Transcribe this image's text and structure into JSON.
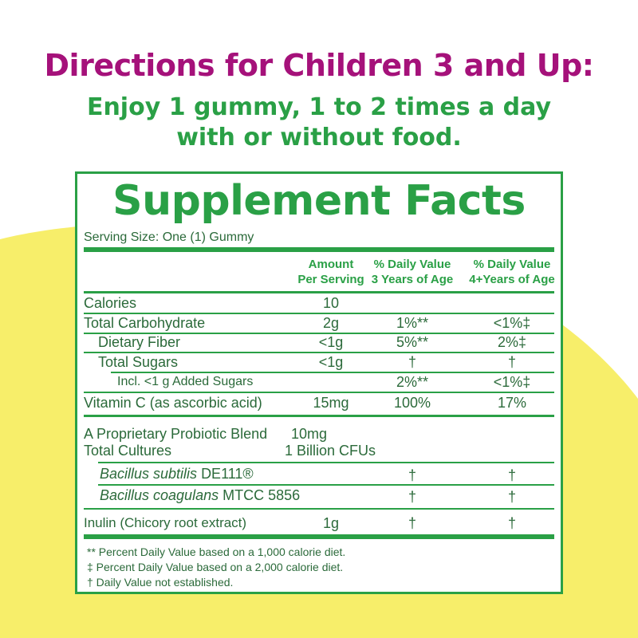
{
  "headline": "Directions for Children 3 and Up:",
  "directions": [
    "Enjoy 1 gummy, 1 to 2 times a day",
    "with or without food."
  ],
  "facts": {
    "title": "Supplement Facts",
    "serving_size": "Serving Size: One (1) Gummy",
    "headers": {
      "amount": [
        "Amount",
        "Per Serving"
      ],
      "dv3": [
        "% Daily Value",
        "3 Years of Age"
      ],
      "dv4": [
        "% Daily Value",
        "4+Years of Age"
      ]
    },
    "rows": [
      {
        "label": "Calories",
        "amount": "10",
        "dv3": "",
        "dv4": ""
      },
      {
        "label": "Total Carbohydrate",
        "amount": "2g",
        "dv3": "1%**",
        "dv4": "<1%‡"
      },
      {
        "label": "Dietary Fiber",
        "amount": "<1g",
        "dv3": "5%**",
        "dv4": "2%‡"
      },
      {
        "label": "Total  Sugars",
        "amount": "<1g",
        "dv3": "†",
        "dv4": "†"
      },
      {
        "label": "Incl. <1 g Added Sugars",
        "amount": "",
        "dv3": "2%**",
        "dv4": "<1%‡"
      },
      {
        "label": "Vitamin C (as ascorbic acid)",
        "amount": "15mg",
        "dv3": "100%",
        "dv4": "17%"
      }
    ],
    "probiotic": {
      "blend_label": "A Proprietary Probiotic Blend",
      "blend_amount": "10mg",
      "cultures_label": "Total Cultures",
      "cultures_amount": "1 Billion CFUs",
      "strain1_name": "Bacillus subtilis",
      "strain1_code": "DE111®",
      "strain1_dv3": "†",
      "strain1_dv4": "†",
      "strain2_name": "Bacillus coagulans",
      "strain2_code": "MTCC 5856",
      "strain2_dv3": "†",
      "strain2_dv4": "†"
    },
    "inulin": {
      "label": "Inulin (Chicory root extract)",
      "amount": "1g",
      "dv3": "†",
      "dv4": "†"
    },
    "footnotes": [
      "** Percent Daily Value based on a 1,000 calorie diet.",
      "‡  Percent Daily Value based on a 2,000 calorie diet.",
      "†  Daily Value not established."
    ]
  },
  "colors": {
    "headline": "#a5117a",
    "green": "#2aa046",
    "text": "#2b6a3a",
    "yellow": "#f7ee6a"
  }
}
